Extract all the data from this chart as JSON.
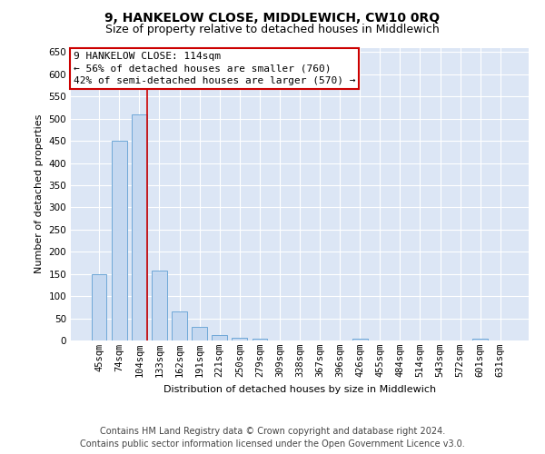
{
  "title": "9, HANKELOW CLOSE, MIDDLEWICH, CW10 0RQ",
  "subtitle": "Size of property relative to detached houses in Middlewich",
  "xlabel": "Distribution of detached houses by size in Middlewich",
  "ylabel": "Number of detached properties",
  "categories": [
    "45sqm",
    "74sqm",
    "104sqm",
    "133sqm",
    "162sqm",
    "191sqm",
    "221sqm",
    "250sqm",
    "279sqm",
    "309sqm",
    "338sqm",
    "367sqm",
    "396sqm",
    "426sqm",
    "455sqm",
    "484sqm",
    "514sqm",
    "543sqm",
    "572sqm",
    "601sqm",
    "631sqm"
  ],
  "values": [
    150,
    450,
    510,
    158,
    65,
    30,
    13,
    7,
    5,
    0,
    0,
    0,
    0,
    5,
    0,
    0,
    0,
    0,
    0,
    5,
    0
  ],
  "bar_color": "#c5d8f0",
  "bar_edge_color": "#6fa8d8",
  "vline_color": "#cc0000",
  "vline_x_index": 2,
  "annotation_lines": [
    "9 HANKELOW CLOSE: 114sqm",
    "← 56% of detached houses are smaller (760)",
    "42% of semi-detached houses are larger (570) →"
  ],
  "annotation_box_facecolor": "#ffffff",
  "annotation_box_edgecolor": "#cc0000",
  "ylim": [
    0,
    660
  ],
  "yticks": [
    0,
    50,
    100,
    150,
    200,
    250,
    300,
    350,
    400,
    450,
    500,
    550,
    600,
    650
  ],
  "footer_line1": "Contains HM Land Registry data © Crown copyright and database right 2024.",
  "footer_line2": "Contains public sector information licensed under the Open Government Licence v3.0.",
  "bg_color": "#ffffff",
  "plot_bg_color": "#dce6f5",
  "grid_color": "#ffffff",
  "title_fontsize": 10,
  "subtitle_fontsize": 9,
  "axis_label_fontsize": 8,
  "tick_fontsize": 7.5,
  "annotation_fontsize": 8,
  "footer_fontsize": 7
}
